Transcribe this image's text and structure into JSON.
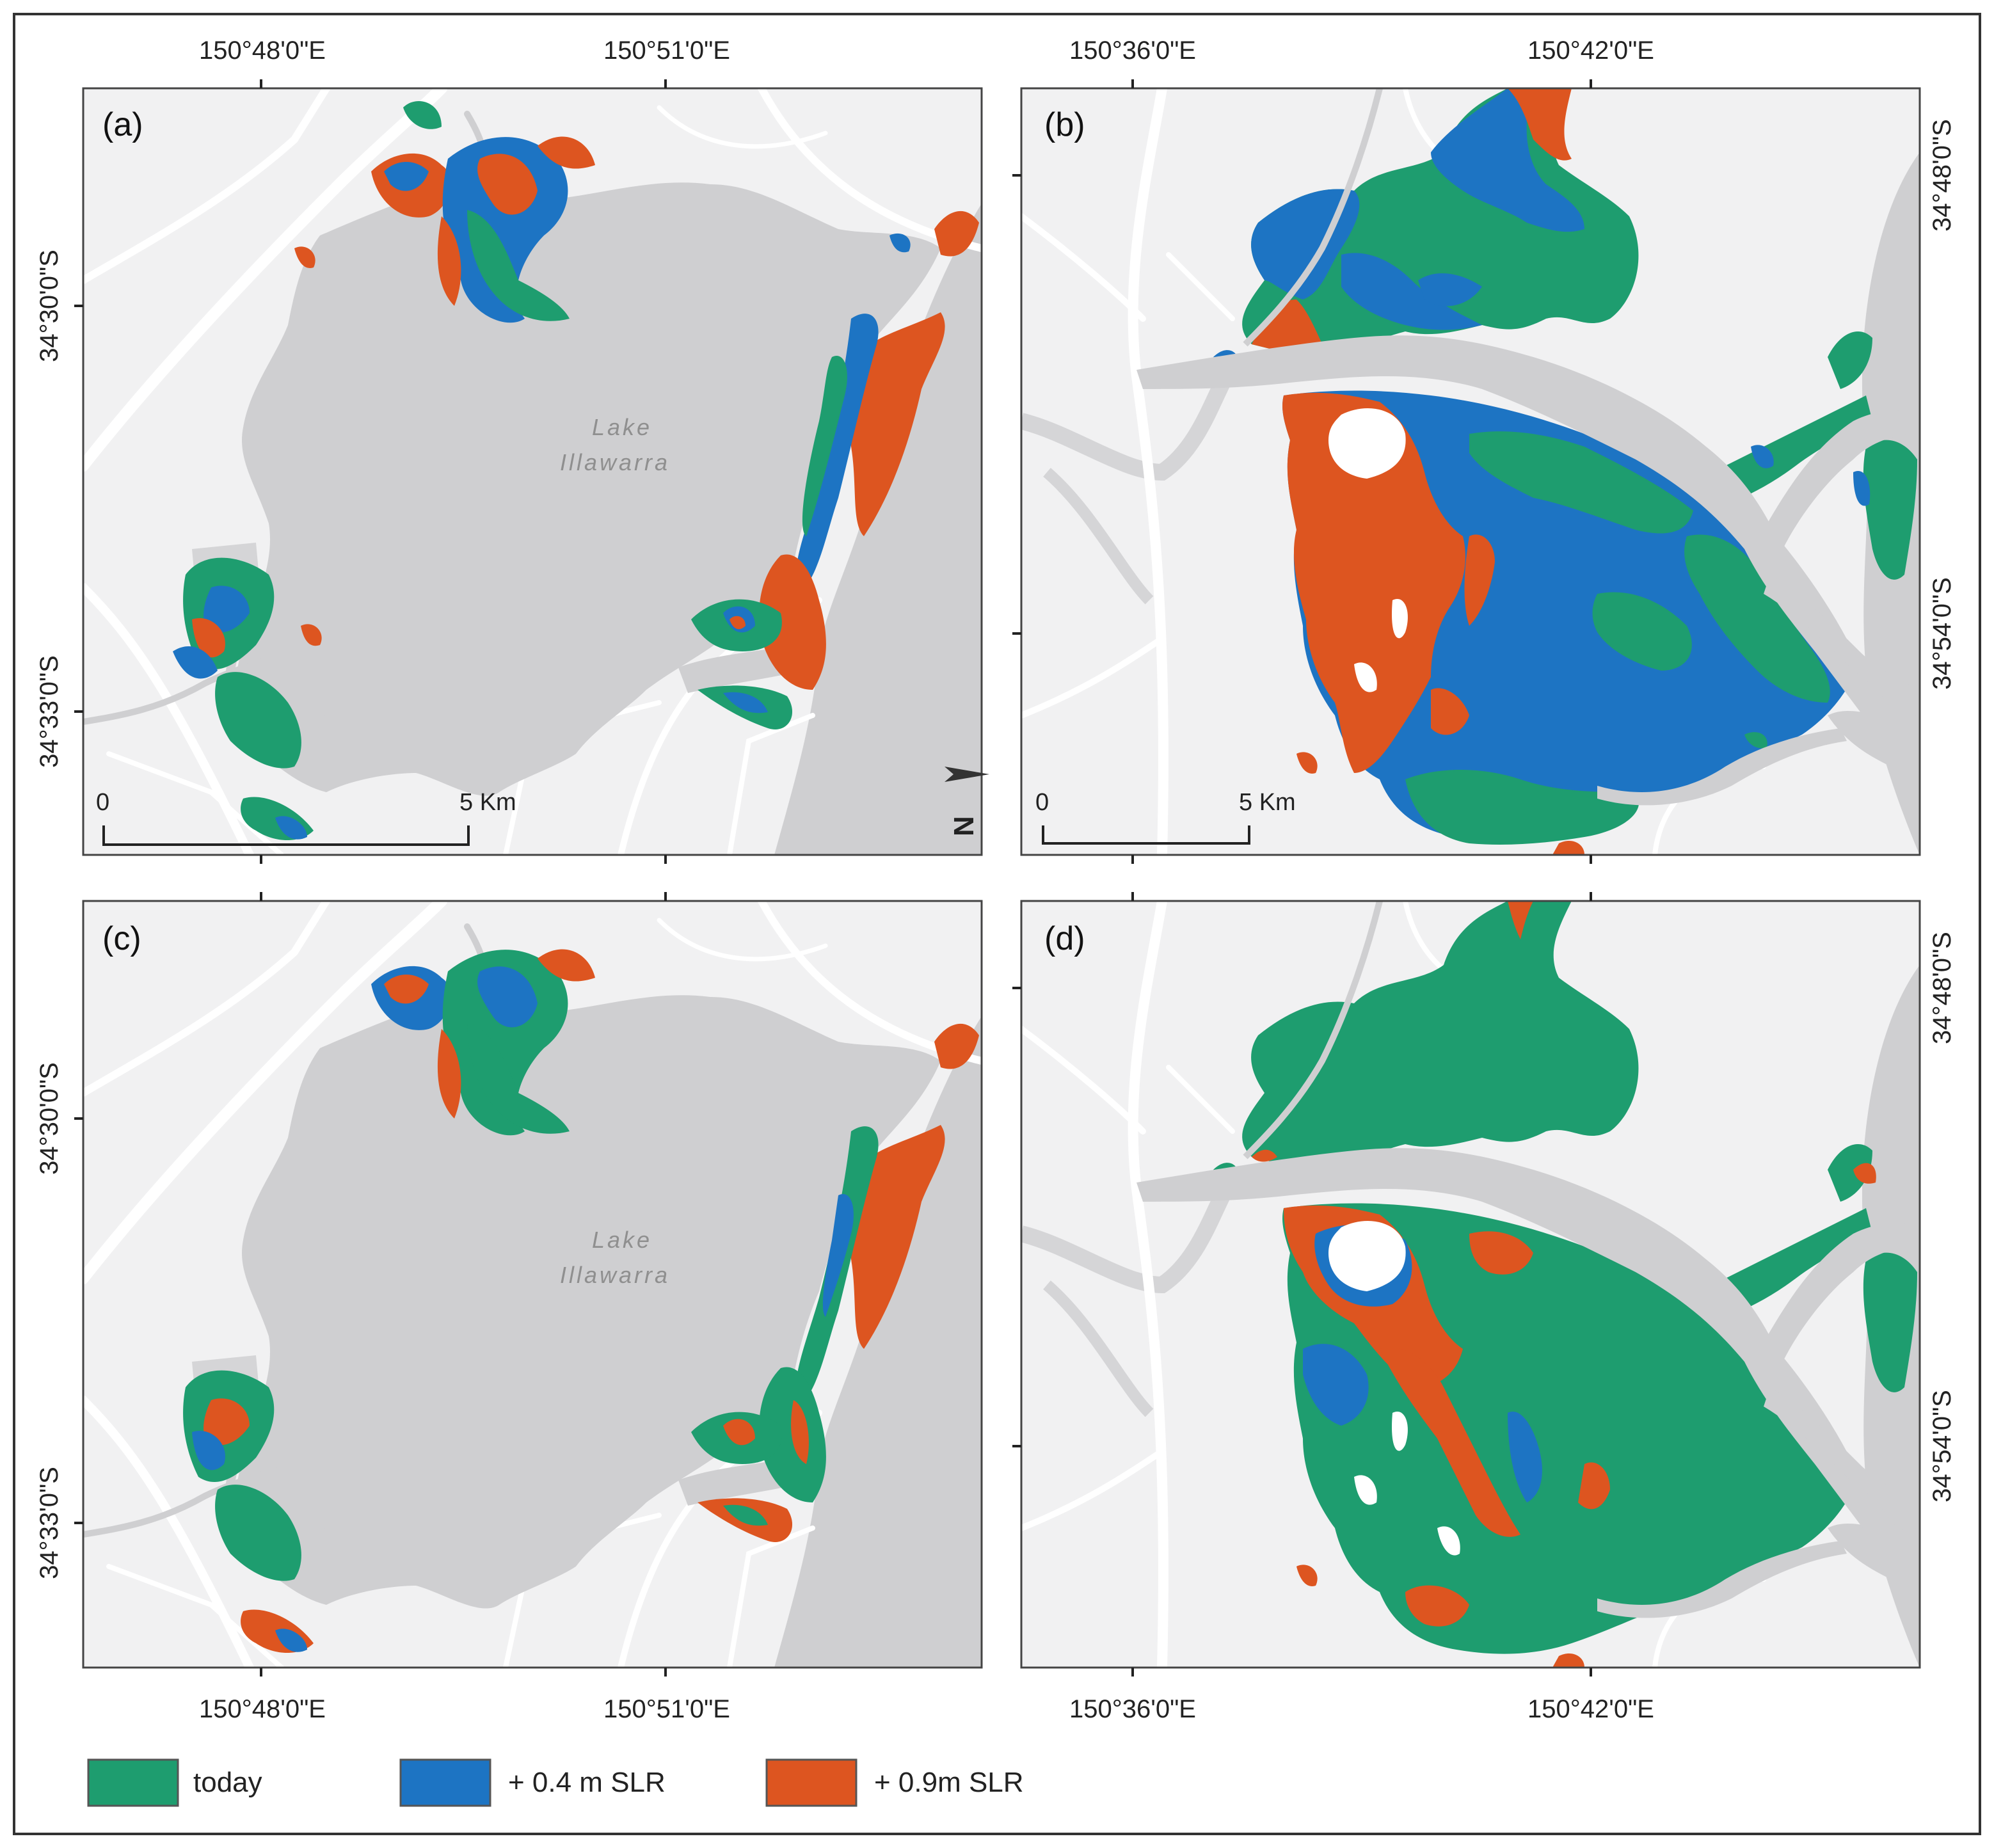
{
  "colors": {
    "today": "#1e9d6f",
    "slr_0_4": "#1d74c3",
    "slr_0_9": "#dd5520",
    "water": "#cfcfd1",
    "land": "#f1f1f2",
    "road": "#ffffff",
    "frame": "#333333"
  },
  "panels": [
    {
      "id": "a",
      "letter": "(a)",
      "lake_label": [
        "Lake",
        "Illawarra"
      ],
      "scale": {
        "zero": "0",
        "end": "5 Km"
      },
      "north_arrow": "N",
      "lon_ticks": [
        "150°48'0\"E",
        "150°51'0\"E"
      ],
      "lat_ticks": [
        "34°30'0\"S",
        "34°33'0\"S"
      ]
    },
    {
      "id": "b",
      "letter": "(b)",
      "scale": {
        "zero": "0",
        "end": "5 Km"
      },
      "lon_ticks": [
        "150°36'0\"E",
        "150°42'0\"E"
      ],
      "lat_ticks": [
        "34°48'0\"S",
        "34°54'0\"S"
      ]
    },
    {
      "id": "c",
      "letter": "(c)",
      "lake_label": [
        "Lake",
        "Illawarra"
      ],
      "lon_ticks": [
        "150°48'0\"E",
        "150°51'0\"E"
      ],
      "lat_ticks": [
        "34°30'0\"S",
        "34°33'0\"S"
      ]
    },
    {
      "id": "d",
      "letter": "(d)",
      "lon_ticks": [
        "150°36'0\"E",
        "150°42'0\"E"
      ],
      "lat_ticks": [
        "34°48'0\"S",
        "34°54'0\"S"
      ]
    }
  ],
  "legend": [
    {
      "label": "today",
      "color": "#1e9d6f"
    },
    {
      "label": "+ 0.4 m SLR",
      "color": "#1d74c3"
    },
    {
      "label": "+ 0.9m SLR",
      "color": "#dd5520"
    }
  ]
}
